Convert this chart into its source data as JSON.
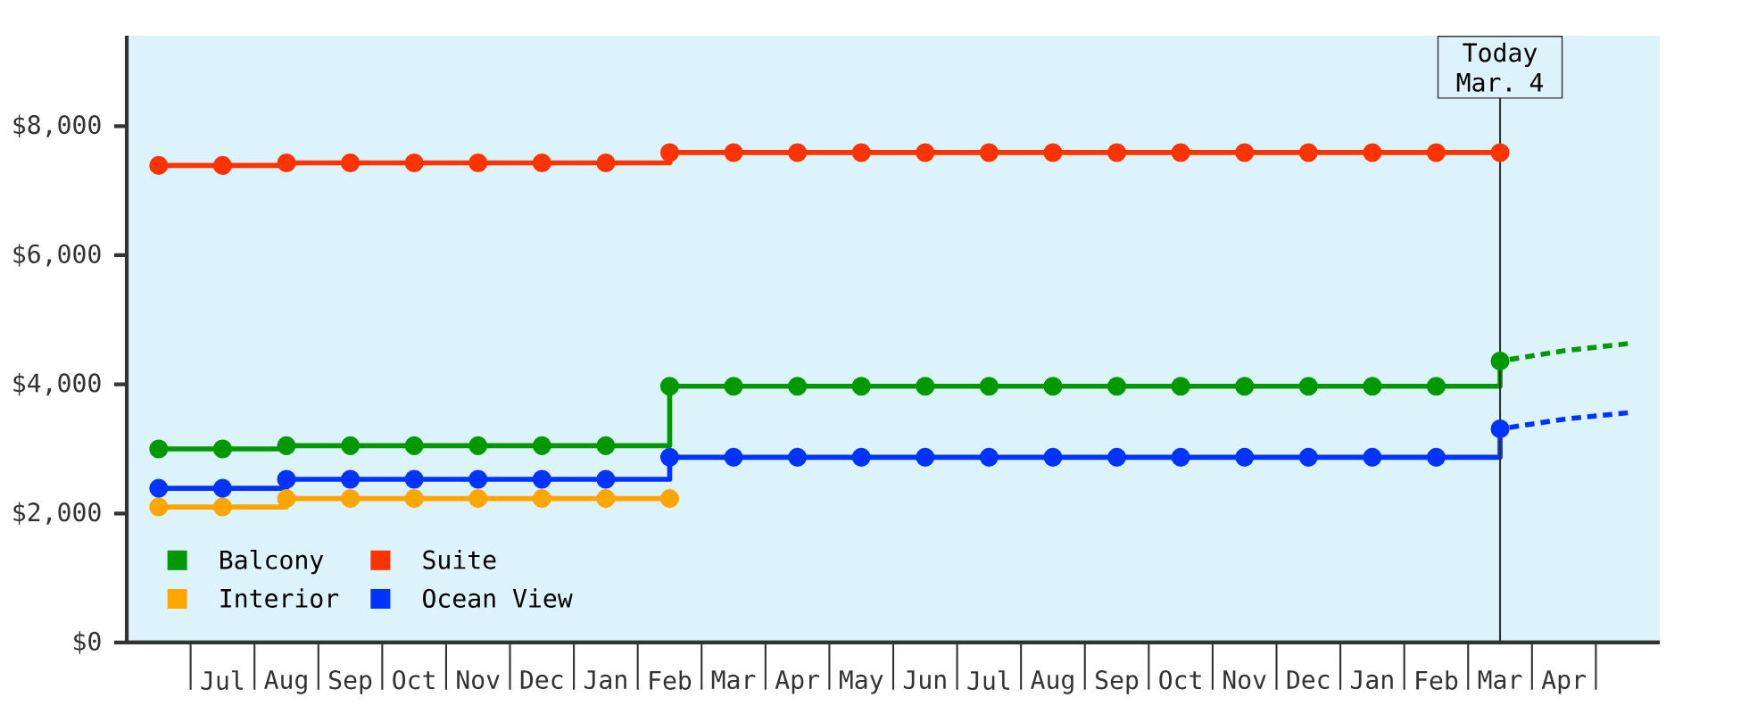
{
  "chart_data": {
    "type": "step",
    "categories": [
      null,
      "Jul",
      "Aug",
      "Sep",
      "Oct",
      "Nov",
      "Dec",
      "Jan",
      "Feb",
      "Mar",
      "Apr",
      "May",
      "Jun",
      "Jul",
      "Aug",
      "Sep",
      "Oct",
      "Nov",
      "Dec",
      "Jan",
      "Feb",
      "Mar",
      "Apr",
      null
    ],
    "series": [
      {
        "name": "Balcony",
        "color": "#009900",
        "values": [
          3000,
          3000,
          3050,
          3050,
          3050,
          3050,
          3050,
          3050,
          3970,
          3970,
          3970,
          3970,
          3970,
          3970,
          3970,
          3970,
          3970,
          3970,
          3970,
          3970,
          3970,
          4360,
          null,
          null
        ]
      },
      {
        "name": "Suite",
        "color": "#ff3300",
        "values": [
          7390,
          7390,
          7430,
          7430,
          7430,
          7430,
          7430,
          7430,
          7590,
          7590,
          7590,
          7590,
          7590,
          7590,
          7590,
          7590,
          7590,
          7590,
          7590,
          7590,
          7590,
          7590,
          null,
          null
        ]
      },
      {
        "name": "Interior",
        "color": "#ffa500",
        "values": [
          2100,
          2100,
          2230,
          2230,
          2230,
          2230,
          2230,
          2230,
          2230,
          null,
          null,
          null,
          null,
          null,
          null,
          null,
          null,
          null,
          null,
          null,
          null,
          null,
          null,
          null
        ]
      },
      {
        "name": "Ocean View",
        "color": "#0033ff",
        "values": [
          2390,
          2390,
          2530,
          2530,
          2530,
          2530,
          2530,
          2530,
          2870,
          2870,
          2870,
          2870,
          2870,
          2870,
          2870,
          2870,
          2870,
          2870,
          2870,
          2870,
          2870,
          3310,
          null,
          null
        ]
      },
      {
        "type": "line",
        "color": "#009900",
        "values": [
          null,
          null,
          null,
          null,
          null,
          null,
          null,
          null,
          null,
          null,
          null,
          null,
          null,
          null,
          null,
          null,
          null,
          null,
          null,
          null,
          null,
          4360,
          4520,
          4630
        ],
        "line_style": "dashed",
        "marker": "none"
      },
      {
        "type": "line",
        "color": "#0033ff",
        "values": [
          null,
          null,
          null,
          null,
          null,
          null,
          null,
          null,
          null,
          null,
          null,
          null,
          null,
          null,
          null,
          null,
          null,
          null,
          null,
          null,
          null,
          3310,
          3460,
          3560
        ],
        "line_style": "dashed",
        "marker": "none"
      }
    ],
    "ylim": [
      0,
      9400
    ],
    "yticks": [
      {
        "value": 0,
        "label": "$0"
      },
      {
        "value": 2000,
        "label": "$2,000"
      },
      {
        "value": 4000,
        "label": "$4,000"
      },
      {
        "value": 6000,
        "label": "$6,000"
      },
      {
        "value": 8000,
        "label": "$8,000"
      }
    ],
    "annotations": [
      "Today Mar. 4"
    ],
    "legend": "bottom left",
    "marker": "circle",
    "line_style": "solid"
  }
}
